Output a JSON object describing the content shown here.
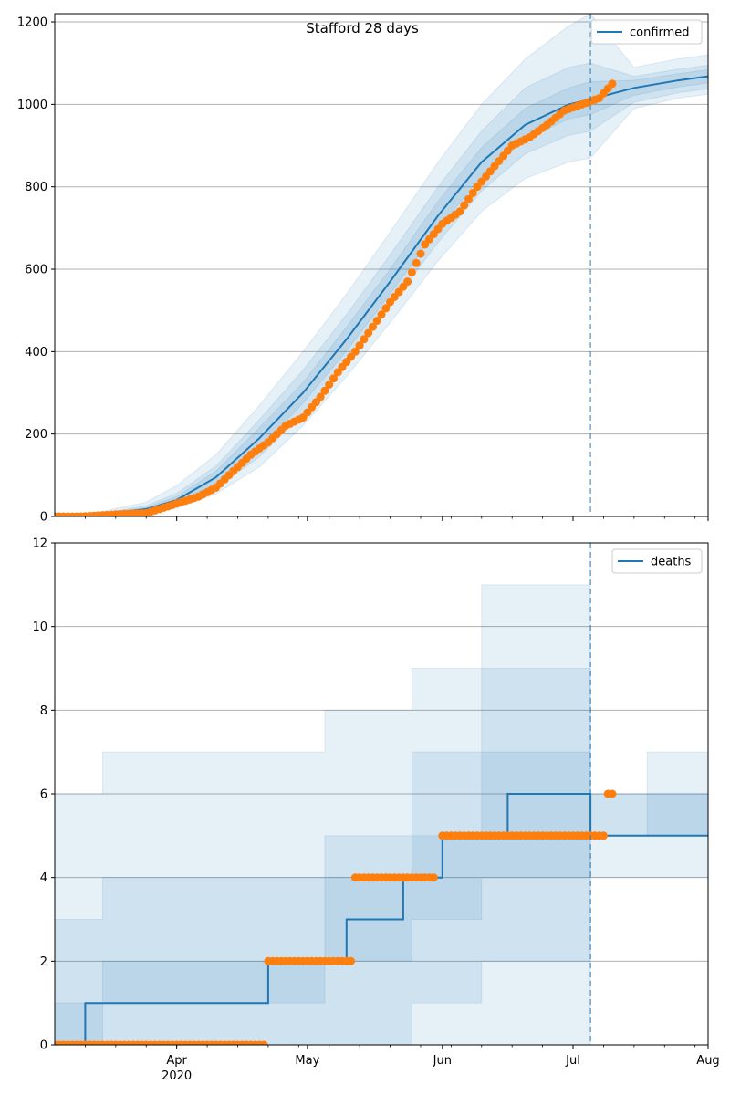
{
  "chart_data": [
    {
      "type": "line",
      "title": "Stafford 28 days",
      "legend": {
        "label": "confirmed",
        "position": "top-right"
      },
      "ylim": [
        0,
        1220
      ],
      "yticks": [
        0,
        200,
        400,
        600,
        800,
        1000,
        1200
      ],
      "grid": "horizontal",
      "forecast_start": "2020-07-05",
      "colors": {
        "line": "#1f77b4",
        "points": "#ff7f0e",
        "band": "#1f77b4"
      },
      "xticks": [
        {
          "date": "2020-04-01",
          "label": "Apr",
          "sublabel": "2020"
        },
        {
          "date": "2020-05-01",
          "label": "May",
          "sublabel": ""
        },
        {
          "date": "2020-06-01",
          "label": "Jun",
          "sublabel": ""
        },
        {
          "date": "2020-07-01",
          "label": "Jul",
          "sublabel": ""
        },
        {
          "date": "2020-08-01",
          "label": "Aug",
          "sublabel": ""
        }
      ],
      "xlim": [
        "2020-03-04",
        "2020-08-01"
      ],
      "fit": {
        "dates": [
          "2020-03-04",
          "2020-03-15",
          "2020-03-25",
          "2020-04-01",
          "2020-04-10",
          "2020-04-20",
          "2020-04-30",
          "2020-05-10",
          "2020-05-20",
          "2020-05-31",
          "2020-06-10",
          "2020-06-20",
          "2020-06-30",
          "2020-07-05",
          "2020-07-15",
          "2020-07-25",
          "2020-08-01"
        ],
        "values": [
          0,
          5,
          18,
          40,
          95,
          190,
          300,
          430,
          570,
          730,
          860,
          950,
          1000,
          1012,
          1040,
          1058,
          1068
        ]
      },
      "bands": [
        {
          "lower": [
            0,
            1,
            6,
            20,
            55,
            120,
            220,
            340,
            470,
            620,
            740,
            820,
            860,
            870,
            990,
            1015,
            1025
          ],
          "upper": [
            0,
            12,
            35,
            75,
            150,
            270,
            400,
            540,
            690,
            860,
            1000,
            1110,
            1190,
            1220,
            1090,
            1110,
            1120
          ]
        },
        {
          "lower": [
            0,
            2,
            10,
            27,
            68,
            145,
            250,
            375,
            510,
            665,
            790,
            880,
            925,
            935,
            1005,
            1028,
            1038
          ],
          "upper": [
            0,
            8,
            26,
            56,
            122,
            235,
            355,
            490,
            635,
            800,
            935,
            1040,
            1090,
            1100,
            1068,
            1085,
            1095
          ]
        },
        {
          "lower": [
            0,
            3,
            13,
            32,
            80,
            165,
            275,
            402,
            540,
            698,
            825,
            915,
            965,
            975,
            1022,
            1042,
            1052
          ],
          "upper": [
            0,
            7,
            22,
            48,
            110,
            215,
            325,
            460,
            600,
            765,
            895,
            990,
            1040,
            1055,
            1058,
            1074,
            1084
          ]
        }
      ],
      "observed": {
        "dates": [
          "2020-03-04",
          "2020-03-10",
          "2020-03-15",
          "2020-03-20",
          "2020-03-25",
          "2020-03-28",
          "2020-03-31",
          "2020-04-03",
          "2020-04-06",
          "2020-04-10",
          "2020-04-14",
          "2020-04-18",
          "2020-04-22",
          "2020-04-26",
          "2020-04-30",
          "2020-05-04",
          "2020-05-08",
          "2020-05-12",
          "2020-05-16",
          "2020-05-20",
          "2020-05-24",
          "2020-05-28",
          "2020-06-01",
          "2020-06-05",
          "2020-06-09",
          "2020-06-13",
          "2020-06-17",
          "2020-06-21",
          "2020-06-25",
          "2020-06-29",
          "2020-07-03",
          "2020-07-07",
          "2020-07-10"
        ],
        "values": [
          0,
          0,
          3,
          6,
          8,
          18,
          28,
          38,
          48,
          70,
          110,
          150,
          180,
          220,
          240,
          290,
          350,
          400,
          460,
          520,
          570,
          660,
          710,
          740,
          800,
          850,
          900,
          920,
          950,
          985,
          1000,
          1015,
          1050
        ]
      }
    },
    {
      "type": "line",
      "title": "",
      "legend": {
        "label": "deaths",
        "position": "top-right"
      },
      "ylim": [
        0,
        12
      ],
      "yticks": [
        0,
        2,
        4,
        6,
        8,
        10,
        12
      ],
      "grid": "horizontal",
      "forecast_start": "2020-07-05",
      "colors": {
        "line": "#1f77b4",
        "points": "#ff7f0e",
        "band": "#1f77b4"
      },
      "xticks": [
        {
          "date": "2020-04-01",
          "label": "Apr",
          "sublabel": "2020"
        },
        {
          "date": "2020-05-01",
          "label": "May",
          "sublabel": ""
        },
        {
          "date": "2020-06-01",
          "label": "Jun",
          "sublabel": ""
        },
        {
          "date": "2020-07-01",
          "label": "Jul",
          "sublabel": ""
        },
        {
          "date": "2020-08-01",
          "label": "Aug",
          "sublabel": ""
        }
      ],
      "xlim": [
        "2020-03-04",
        "2020-08-01"
      ],
      "fit_step": [
        {
          "date": "2020-03-04",
          "value": 0
        },
        {
          "date": "2020-03-11",
          "value": 1
        },
        {
          "date": "2020-04-22",
          "value": 2
        },
        {
          "date": "2020-05-10",
          "value": 3
        },
        {
          "date": "2020-05-23",
          "value": 4
        },
        {
          "date": "2020-06-01",
          "value": 5
        },
        {
          "date": "2020-06-16",
          "value": 6
        },
        {
          "date": "2020-07-05",
          "value": 5
        },
        {
          "date": "2020-08-01",
          "value": 5
        }
      ],
      "bands": [
        {
          "dates": [
            "2020-03-04",
            "2020-03-15",
            "2020-04-05",
            "2020-05-05",
            "2020-05-25",
            "2020-06-10",
            "2020-07-05",
            "2020-07-05",
            "2020-07-18",
            "2020-08-01"
          ],
          "lower": [
            0,
            0,
            0,
            0,
            0,
            0,
            0,
            4,
            4,
            4
          ],
          "upper": [
            6,
            7,
            7,
            8,
            9,
            11,
            12,
            6,
            7,
            7
          ]
        },
        {
          "dates": [
            "2020-03-04",
            "2020-03-15",
            "2020-04-05",
            "2020-05-05",
            "2020-05-25",
            "2020-06-10",
            "2020-07-05",
            "2020-07-05",
            "2020-07-18",
            "2020-08-01"
          ],
          "lower": [
            0,
            0,
            0,
            0,
            1,
            2,
            3,
            5,
            5,
            5
          ],
          "upper": [
            3,
            4,
            4,
            5,
            7,
            9,
            10,
            6,
            6,
            7
          ]
        },
        {
          "dates": [
            "2020-03-04",
            "2020-03-15",
            "2020-04-05",
            "2020-05-05",
            "2020-05-25",
            "2020-06-10",
            "2020-07-05",
            "2020-07-05",
            "2020-07-18",
            "2020-08-01"
          ],
          "lower": [
            0,
            1,
            1,
            2,
            3,
            4,
            5,
            5,
            5,
            5
          ],
          "upper": [
            1,
            2,
            2,
            4,
            5,
            7,
            9,
            5,
            6,
            6
          ]
        }
      ],
      "observed_segments": [
        {
          "start": "2020-03-04",
          "end": "2020-04-21",
          "value": 0
        },
        {
          "start": "2020-04-22",
          "end": "2020-05-11",
          "value": 2
        },
        {
          "start": "2020-05-12",
          "end": "2020-05-30",
          "value": 4
        },
        {
          "start": "2020-06-01",
          "end": "2020-07-08",
          "value": 5
        },
        {
          "start": "2020-07-09",
          "end": "2020-07-10",
          "value": 6
        }
      ]
    }
  ]
}
